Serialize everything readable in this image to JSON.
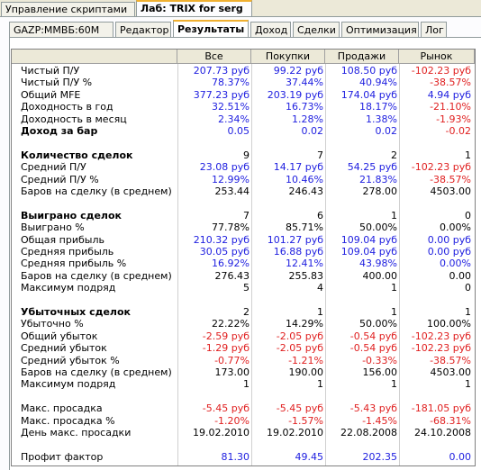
{
  "top_tabs": [
    {
      "label": "Управление скриптами",
      "active": false
    },
    {
      "label": "Лаб: TRIX for serg",
      "active": true
    }
  ],
  "sub_tabs": [
    {
      "label": "GAZP:MMBБ:60M",
      "active": false
    },
    {
      "label": "Редактор",
      "active": false
    },
    {
      "label": "Результаты",
      "active": true
    },
    {
      "label": "Доход",
      "active": false
    },
    {
      "label": "Сделки",
      "active": false
    },
    {
      "label": "Оптимизация",
      "active": false
    },
    {
      "label": "Лог",
      "active": false
    }
  ],
  "columns": [
    "Все",
    "Покупки",
    "Продажи",
    "Рынок"
  ],
  "colors": {
    "blue": "#2020e0",
    "red": "#e02020",
    "black": "#000000"
  },
  "rows": [
    {
      "label": "Чистый П/У",
      "bold": false,
      "values": [
        {
          "t": "207.73 руб",
          "c": "blue"
        },
        {
          "t": "99.22 руб",
          "c": "blue"
        },
        {
          "t": "108.50 руб",
          "c": "blue"
        },
        {
          "t": "-102.23 руб",
          "c": "red"
        }
      ]
    },
    {
      "label": "Чистый П/У %",
      "bold": false,
      "values": [
        {
          "t": "78.37%",
          "c": "blue"
        },
        {
          "t": "37.44%",
          "c": "blue"
        },
        {
          "t": "40.94%",
          "c": "blue"
        },
        {
          "t": "-38.57%",
          "c": "red"
        }
      ]
    },
    {
      "label": "Общий MFE",
      "bold": false,
      "values": [
        {
          "t": "377.23 руб",
          "c": "blue"
        },
        {
          "t": "203.19 руб",
          "c": "blue"
        },
        {
          "t": "174.04 руб",
          "c": "blue"
        },
        {
          "t": "4.94 руб",
          "c": "blue"
        }
      ]
    },
    {
      "label": "Доходность в год",
      "bold": false,
      "values": [
        {
          "t": "32.51%",
          "c": "blue"
        },
        {
          "t": "16.73%",
          "c": "blue"
        },
        {
          "t": "18.17%",
          "c": "blue"
        },
        {
          "t": "-21.10%",
          "c": "red"
        }
      ]
    },
    {
      "label": "Доходность в месяц",
      "bold": false,
      "values": [
        {
          "t": "2.34%",
          "c": "blue"
        },
        {
          "t": "1.28%",
          "c": "blue"
        },
        {
          "t": "1.38%",
          "c": "blue"
        },
        {
          "t": "-1.93%",
          "c": "red"
        }
      ]
    },
    {
      "label": "Доход за бар",
      "bold": true,
      "values": [
        {
          "t": "0.05",
          "c": "blue"
        },
        {
          "t": "0.02",
          "c": "blue"
        },
        {
          "t": "0.02",
          "c": "blue"
        },
        {
          "t": "-0.02",
          "c": "red"
        }
      ]
    },
    {
      "label": "",
      "bold": false,
      "values": []
    },
    {
      "label": "Количество сделок",
      "bold": true,
      "values": [
        {
          "t": "9",
          "c": "black"
        },
        {
          "t": "7",
          "c": "black"
        },
        {
          "t": "2",
          "c": "black"
        },
        {
          "t": "1",
          "c": "black"
        }
      ]
    },
    {
      "label": "Средний П/У",
      "bold": false,
      "values": [
        {
          "t": "23.08 руб",
          "c": "blue"
        },
        {
          "t": "14.17 руб",
          "c": "blue"
        },
        {
          "t": "54.25 руб",
          "c": "blue"
        },
        {
          "t": "-102.23 руб",
          "c": "red"
        }
      ]
    },
    {
      "label": "Средний П/У %",
      "bold": false,
      "values": [
        {
          "t": "12.99%",
          "c": "blue"
        },
        {
          "t": "10.46%",
          "c": "blue"
        },
        {
          "t": "21.83%",
          "c": "blue"
        },
        {
          "t": "-38.57%",
          "c": "red"
        }
      ]
    },
    {
      "label": "Баров на сделку (в среднем)",
      "bold": false,
      "values": [
        {
          "t": "253.44",
          "c": "black"
        },
        {
          "t": "246.43",
          "c": "black"
        },
        {
          "t": "278.00",
          "c": "black"
        },
        {
          "t": "4503.00",
          "c": "black"
        }
      ]
    },
    {
      "label": "",
      "bold": false,
      "values": []
    },
    {
      "label": "Выиграно сделок",
      "bold": true,
      "values": [
        {
          "t": "7",
          "c": "black"
        },
        {
          "t": "6",
          "c": "black"
        },
        {
          "t": "1",
          "c": "black"
        },
        {
          "t": "0",
          "c": "black"
        }
      ]
    },
    {
      "label": "Выиграно %",
      "bold": false,
      "values": [
        {
          "t": "77.78%",
          "c": "black"
        },
        {
          "t": "85.71%",
          "c": "black"
        },
        {
          "t": "50.00%",
          "c": "black"
        },
        {
          "t": "0.00%",
          "c": "black"
        }
      ]
    },
    {
      "label": "Общая прибыль",
      "bold": false,
      "values": [
        {
          "t": "210.32 руб",
          "c": "blue"
        },
        {
          "t": "101.27 руб",
          "c": "blue"
        },
        {
          "t": "109.04 руб",
          "c": "blue"
        },
        {
          "t": "0.00 руб",
          "c": "blue"
        }
      ]
    },
    {
      "label": "Средняя прибыль",
      "bold": false,
      "values": [
        {
          "t": "30.05 руб",
          "c": "blue"
        },
        {
          "t": "16.88 руб",
          "c": "blue"
        },
        {
          "t": "109.04 руб",
          "c": "blue"
        },
        {
          "t": "0.00 руб",
          "c": "blue"
        }
      ]
    },
    {
      "label": "Средняя прибыль %",
      "bold": false,
      "values": [
        {
          "t": "16.92%",
          "c": "blue"
        },
        {
          "t": "12.41%",
          "c": "blue"
        },
        {
          "t": "43.98%",
          "c": "blue"
        },
        {
          "t": "0.00%",
          "c": "blue"
        }
      ]
    },
    {
      "label": "Баров на сделку (в среднем)",
      "bold": false,
      "values": [
        {
          "t": "276.43",
          "c": "black"
        },
        {
          "t": "255.83",
          "c": "black"
        },
        {
          "t": "400.00",
          "c": "black"
        },
        {
          "t": "0.00",
          "c": "black"
        }
      ]
    },
    {
      "label": "Максимум подряд",
      "bold": false,
      "values": [
        {
          "t": "5",
          "c": "black"
        },
        {
          "t": "4",
          "c": "black"
        },
        {
          "t": "1",
          "c": "black"
        },
        {
          "t": "0",
          "c": "black"
        }
      ]
    },
    {
      "label": "",
      "bold": false,
      "values": []
    },
    {
      "label": "Убыточных сделок",
      "bold": true,
      "values": [
        {
          "t": "2",
          "c": "black"
        },
        {
          "t": "1",
          "c": "black"
        },
        {
          "t": "1",
          "c": "black"
        },
        {
          "t": "1",
          "c": "black"
        }
      ]
    },
    {
      "label": "Убыточно %",
      "bold": false,
      "values": [
        {
          "t": "22.22%",
          "c": "black"
        },
        {
          "t": "14.29%",
          "c": "black"
        },
        {
          "t": "50.00%",
          "c": "black"
        },
        {
          "t": "100.00%",
          "c": "black"
        }
      ]
    },
    {
      "label": "Общий убыток",
      "bold": false,
      "values": [
        {
          "t": "-2.59 руб",
          "c": "red"
        },
        {
          "t": "-2.05 руб",
          "c": "red"
        },
        {
          "t": "-0.54 руб",
          "c": "red"
        },
        {
          "t": "-102.23 руб",
          "c": "red"
        }
      ]
    },
    {
      "label": "Средний убыток",
      "bold": false,
      "values": [
        {
          "t": "-1.29 руб",
          "c": "red"
        },
        {
          "t": "-2.05 руб",
          "c": "red"
        },
        {
          "t": "-0.54 руб",
          "c": "red"
        },
        {
          "t": "-102.23 руб",
          "c": "red"
        }
      ]
    },
    {
      "label": "Средний убыток %",
      "bold": false,
      "values": [
        {
          "t": "-0.77%",
          "c": "red"
        },
        {
          "t": "-1.21%",
          "c": "red"
        },
        {
          "t": "-0.33%",
          "c": "red"
        },
        {
          "t": "-38.57%",
          "c": "red"
        }
      ]
    },
    {
      "label": "Баров на сделку (в среднем)",
      "bold": false,
      "values": [
        {
          "t": "173.00",
          "c": "black"
        },
        {
          "t": "190.00",
          "c": "black"
        },
        {
          "t": "156.00",
          "c": "black"
        },
        {
          "t": "4503.00",
          "c": "black"
        }
      ]
    },
    {
      "label": "Максимум подряд",
      "bold": false,
      "values": [
        {
          "t": "1",
          "c": "black"
        },
        {
          "t": "1",
          "c": "black"
        },
        {
          "t": "1",
          "c": "black"
        },
        {
          "t": "1",
          "c": "black"
        }
      ]
    },
    {
      "label": "",
      "bold": false,
      "values": []
    },
    {
      "label": "Макс. просадка",
      "bold": false,
      "values": [
        {
          "t": "-5.45 руб",
          "c": "red"
        },
        {
          "t": "-5.45 руб",
          "c": "red"
        },
        {
          "t": "-5.43 руб",
          "c": "red"
        },
        {
          "t": "-181.05 руб",
          "c": "red"
        }
      ]
    },
    {
      "label": "Макс. просадка %",
      "bold": false,
      "values": [
        {
          "t": "-1.20%",
          "c": "red"
        },
        {
          "t": "-1.57%",
          "c": "red"
        },
        {
          "t": "-1.45%",
          "c": "red"
        },
        {
          "t": "-68.31%",
          "c": "red"
        }
      ]
    },
    {
      "label": "День макс. просадки",
      "bold": false,
      "values": [
        {
          "t": "19.02.2010",
          "c": "black"
        },
        {
          "t": "19.02.2010",
          "c": "black"
        },
        {
          "t": "22.08.2008",
          "c": "black"
        },
        {
          "t": "24.10.2008",
          "c": "black"
        }
      ]
    },
    {
      "label": "",
      "bold": false,
      "values": []
    },
    {
      "label": "Профит фактор",
      "bold": false,
      "values": [
        {
          "t": "81.30",
          "c": "blue"
        },
        {
          "t": "49.45",
          "c": "blue"
        },
        {
          "t": "202.35",
          "c": "blue"
        },
        {
          "t": "0.00",
          "c": "blue"
        }
      ]
    }
  ]
}
